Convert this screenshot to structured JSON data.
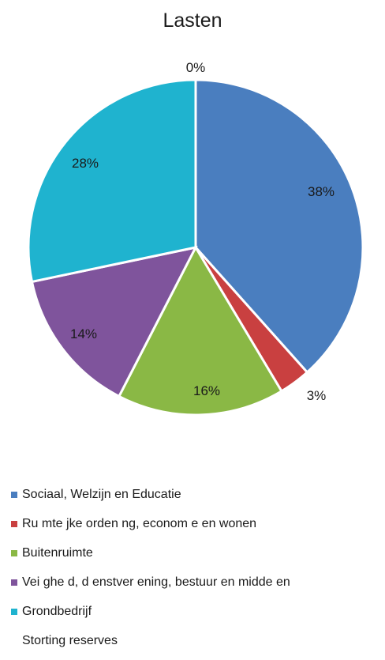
{
  "chart_data": {
    "type": "pie",
    "title": "Lasten",
    "legend_position": "bottom",
    "categories": [
      "Sociaal, Welzijn en Educatie",
      "Ru mte  jke orden ng, econom e en wonen",
      "Buitenruimte",
      "Vei  ghe d, d enstver ening, bestuur en midde en",
      "Grondbedrijf",
      "Storting reserves"
    ],
    "values": [
      38,
      3,
      16,
      14,
      28,
      0
    ],
    "labels": [
      "38%",
      "3%",
      "16%",
      "14%",
      "28%",
      "0%"
    ],
    "colors": [
      "#4a7ebf",
      "#c94040",
      "#8ab845",
      "#7f549c",
      "#1fb3cf",
      "#f39a3a"
    ]
  }
}
